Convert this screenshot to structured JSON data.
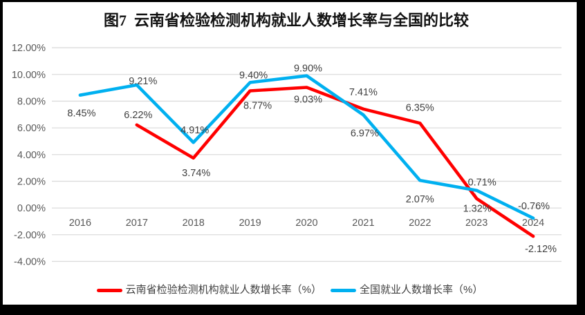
{
  "title": "图7  云南省检验检测机构就业人数增长率与全国的比较",
  "chart_data": {
    "type": "line",
    "title": "图7  云南省检验检测机构就业人数增长率与全国的比较",
    "categories": [
      "2016",
      "2017",
      "2018",
      "2019",
      "2020",
      "2021",
      "2022",
      "2023",
      "2024"
    ],
    "series": [
      {
        "name": "云南省检验检测机构就业人数增长率（%）",
        "color": "#ff0000",
        "values": [
          null,
          6.22,
          3.74,
          8.77,
          9.03,
          7.41,
          6.35,
          0.71,
          -2.12
        ]
      },
      {
        "name": "全国就业人数增长率（%）",
        "color": "#00b0f0",
        "values": [
          8.45,
          9.21,
          4.91,
          9.4,
          9.9,
          6.97,
          2.07,
          1.32,
          -0.76
        ]
      }
    ],
    "ylim": [
      -4,
      12
    ],
    "ytick_step": 2,
    "ytick_labels": [
      "12.00%",
      "10.00%",
      "8.00%",
      "6.00%",
      "4.00%",
      "2.00%",
      "0.00%",
      "-2.00%",
      "-4.00%"
    ],
    "data_label_format": "0.00%",
    "grid": true,
    "legend_position": "bottom"
  },
  "colors": {
    "frame": "#000000",
    "card_bg": "#ffffff",
    "gridline": "#dcdcdc",
    "axis_text": "#595959",
    "data_label_text": "#404040",
    "leader_line": "#a6a6a6"
  }
}
